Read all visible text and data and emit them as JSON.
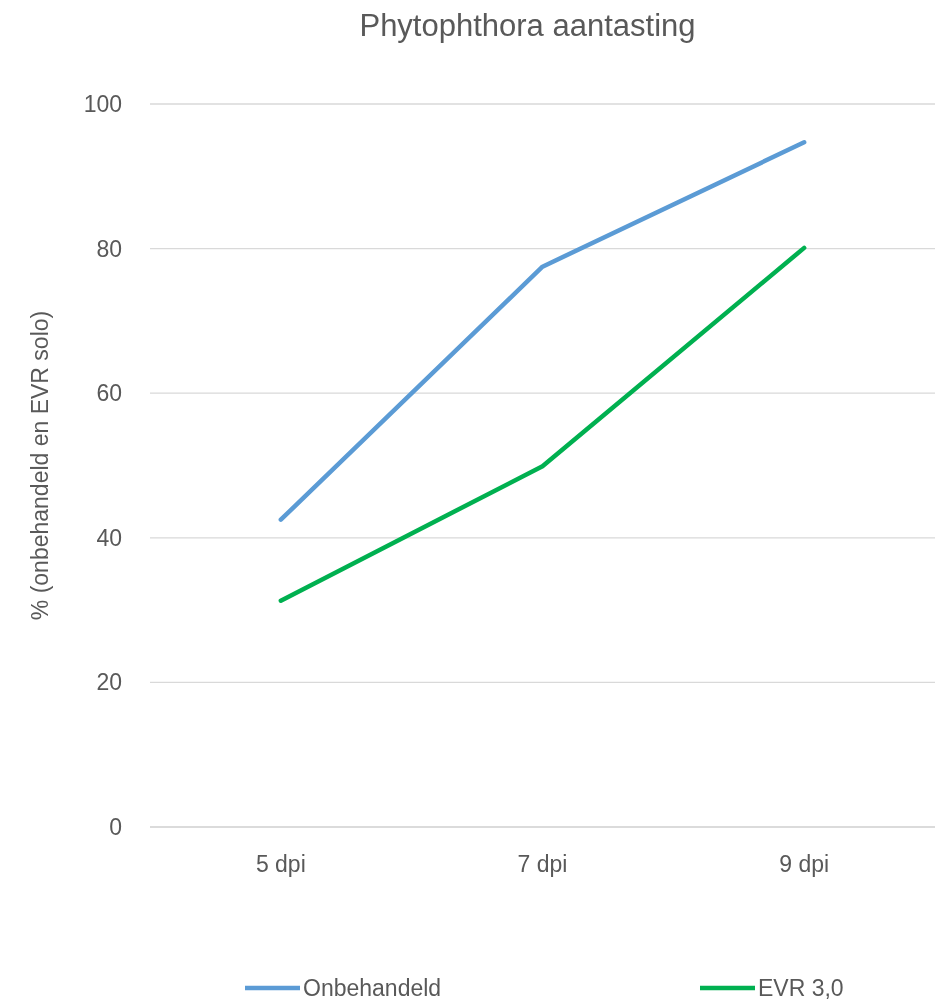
{
  "chart_data": {
    "type": "line",
    "title": "Phytophthora aantasting",
    "ylabel": "% (onbehandeld en EVR solo)",
    "categories": [
      "5 dpi",
      "7 dpi",
      "9 dpi"
    ],
    "series": [
      {
        "name": "Onbehandeld",
        "color": "#5b9bd5",
        "values": [
          42.5,
          77.5,
          94.7
        ]
      },
      {
        "name": "EVR 3,0",
        "color": "#00b050",
        "values": [
          31.3,
          49.9,
          80.1
        ]
      }
    ],
    "ylim": [
      0,
      100
    ],
    "yticks": [
      0,
      20,
      40,
      60,
      80,
      100
    ],
    "grid": "y",
    "legend": "bottom",
    "marker": "none",
    "line_style": "solid"
  }
}
